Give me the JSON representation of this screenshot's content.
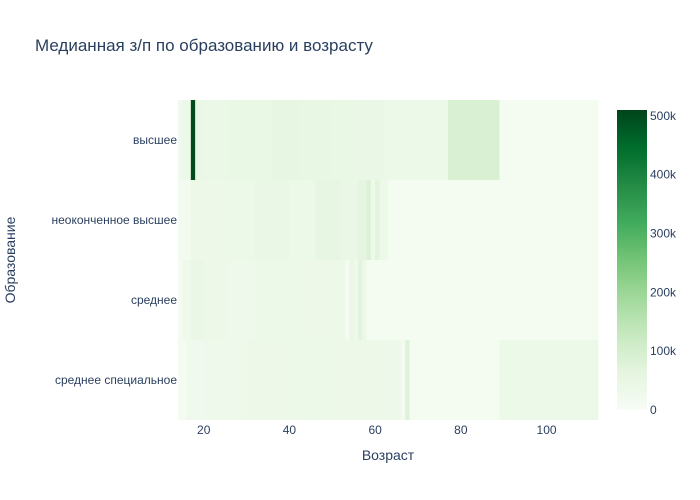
{
  "chart_data": {
    "type": "heatmap",
    "title": "Медианная з/п по образованию и возрасту",
    "xlabel": "Возраст",
    "ylabel": "Образование",
    "x_ticks": [
      "20",
      "40",
      "60",
      "80",
      "100"
    ],
    "x_tick_values": [
      20,
      40,
      60,
      80,
      100
    ],
    "xlim": [
      14,
      112
    ],
    "categories": [
      "высшее",
      "неоконченное высшее",
      "среднее",
      "среднее специальное"
    ],
    "colorbar": {
      "ticks": [
        "500k",
        "400k",
        "300k",
        "200k",
        "100k",
        "0"
      ],
      "tick_values": [
        500000,
        400000,
        300000,
        200000,
        100000,
        0
      ],
      "range": [
        0,
        510000
      ],
      "colorscale": "Greens"
    },
    "series": [
      {
        "segments": [
          {
            "x0": 14,
            "x1": 15,
            "value": 25000
          },
          {
            "x0": 15,
            "x1": 17,
            "value": 40000
          },
          {
            "x0": 17,
            "x1": 18,
            "value": 500000
          },
          {
            "x0": 18,
            "x1": 20,
            "value": 45000
          },
          {
            "x0": 20,
            "x1": 26,
            "value": 42000
          },
          {
            "x0": 26,
            "x1": 30,
            "value": 48000
          },
          {
            "x0": 30,
            "x1": 36,
            "value": 50000
          },
          {
            "x0": 36,
            "x1": 42,
            "value": 55000
          },
          {
            "x0": 42,
            "x1": 50,
            "value": 52000
          },
          {
            "x0": 50,
            "x1": 56,
            "value": 48000
          },
          {
            "x0": 56,
            "x1": 62,
            "value": 45000
          },
          {
            "x0": 62,
            "x1": 70,
            "value": 40000
          },
          {
            "x0": 70,
            "x1": 77,
            "value": 38000
          },
          {
            "x0": 77,
            "x1": 89,
            "value": 90000
          },
          {
            "x0": 89,
            "x1": 112,
            "value": 12000
          }
        ]
      },
      {
        "segments": [
          {
            "x0": 14,
            "x1": 17,
            "value": 15000
          },
          {
            "x0": 17,
            "x1": 25,
            "value": 35000
          },
          {
            "x0": 25,
            "x1": 32,
            "value": 40000
          },
          {
            "x0": 32,
            "x1": 40,
            "value": 45000
          },
          {
            "x0": 40,
            "x1": 46,
            "value": 38000
          },
          {
            "x0": 46,
            "x1": 52,
            "value": 55000
          },
          {
            "x0": 52,
            "x1": 56,
            "value": 45000
          },
          {
            "x0": 56,
            "x1": 58,
            "value": 60000
          },
          {
            "x0": 58,
            "x1": 59,
            "value": 85000
          },
          {
            "x0": 59,
            "x1": 60,
            "value": 30000
          },
          {
            "x0": 60,
            "x1": 61,
            "value": 70000
          },
          {
            "x0": 61,
            "x1": 63,
            "value": 40000
          },
          {
            "x0": 63,
            "x1": 112,
            "value": 12000
          }
        ]
      },
      {
        "segments": [
          {
            "x0": 14,
            "x1": 15,
            "value": 12000
          },
          {
            "x0": 15,
            "x1": 17,
            "value": 30000
          },
          {
            "x0": 17,
            "x1": 20,
            "value": 45000
          },
          {
            "x0": 20,
            "x1": 25,
            "value": 35000
          },
          {
            "x0": 25,
            "x1": 32,
            "value": 30000
          },
          {
            "x0": 32,
            "x1": 42,
            "value": 40000
          },
          {
            "x0": 42,
            "x1": 50,
            "value": 35000
          },
          {
            "x0": 50,
            "x1": 53,
            "value": 40000
          },
          {
            "x0": 53,
            "x1": 54,
            "value": 8000
          },
          {
            "x0": 54,
            "x1": 55,
            "value": 50000
          },
          {
            "x0": 55,
            "x1": 56,
            "value": 30000
          },
          {
            "x0": 56,
            "x1": 57,
            "value": 70000
          },
          {
            "x0": 57,
            "x1": 58,
            "value": 40000
          },
          {
            "x0": 58,
            "x1": 112,
            "value": 12000
          }
        ]
      },
      {
        "segments": [
          {
            "x0": 14,
            "x1": 16,
            "value": 12000
          },
          {
            "x0": 16,
            "x1": 20,
            "value": 25000
          },
          {
            "x0": 20,
            "x1": 30,
            "value": 30000
          },
          {
            "x0": 30,
            "x1": 40,
            "value": 35000
          },
          {
            "x0": 40,
            "x1": 50,
            "value": 38000
          },
          {
            "x0": 50,
            "x1": 60,
            "value": 35000
          },
          {
            "x0": 60,
            "x1": 66,
            "value": 32000
          },
          {
            "x0": 66,
            "x1": 67,
            "value": 15000
          },
          {
            "x0": 67,
            "x1": 68,
            "value": 80000
          },
          {
            "x0": 68,
            "x1": 89,
            "value": 12000
          },
          {
            "x0": 89,
            "x1": 112,
            "value": 40000
          }
        ]
      }
    ]
  }
}
